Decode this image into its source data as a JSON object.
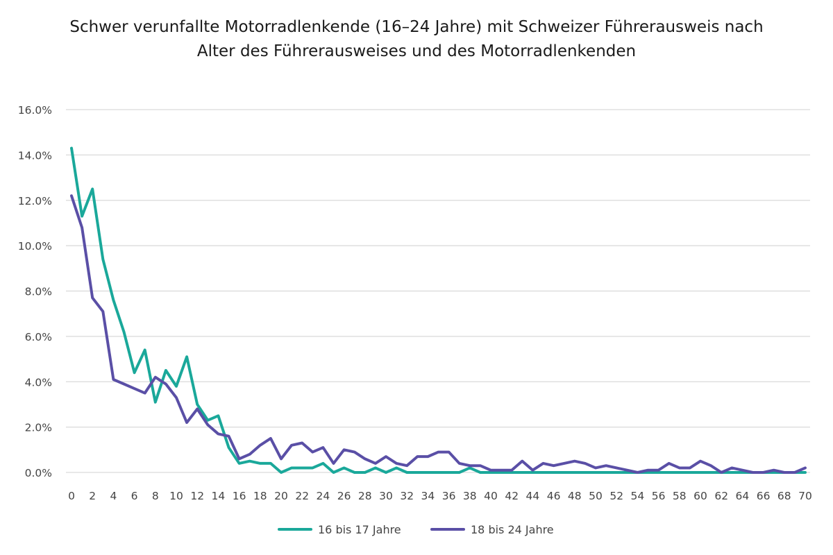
{
  "chart_data": {
    "type": "line",
    "title": "Schwer verunfallte Motorradlenkende (16–24 Jahre) mit Schweizer Führerausweis nach Alter des Führerausweises und des Motorradlenkenden",
    "xlabel": "",
    "ylabel": "",
    "x": [
      0,
      1,
      2,
      3,
      4,
      5,
      6,
      7,
      8,
      9,
      10,
      11,
      12,
      13,
      14,
      15,
      16,
      17,
      18,
      19,
      20,
      21,
      22,
      23,
      24,
      25,
      26,
      27,
      28,
      29,
      30,
      31,
      32,
      33,
      34,
      35,
      36,
      37,
      38,
      39,
      40,
      41,
      42,
      43,
      44,
      45,
      46,
      47,
      48,
      49,
      50,
      51,
      52,
      53,
      54,
      55,
      56,
      57,
      58,
      59,
      60,
      61,
      62,
      63,
      64,
      65,
      66,
      67,
      68,
      69,
      70
    ],
    "xlim": [
      0,
      70
    ],
    "ylim": [
      0,
      16
    ],
    "y_ticks": [
      0,
      2,
      4,
      6,
      8,
      10,
      12,
      14,
      16
    ],
    "y_tick_labels": [
      "0.0%",
      "2.0%",
      "4.0%",
      "6.0%",
      "8.0%",
      "10.0%",
      "12.0%",
      "14.0%",
      "16.0%"
    ],
    "x_tick_labels": [
      "0",
      "2",
      "4",
      "6",
      "8",
      "10",
      "12",
      "14",
      "16",
      "18",
      "20",
      "22",
      "24",
      "26",
      "28",
      "30",
      "32",
      "34",
      "36",
      "38",
      "40",
      "42",
      "44",
      "46",
      "48",
      "50",
      "52",
      "54",
      "56",
      "58",
      "60",
      "62",
      "64",
      "66",
      "68",
      "70"
    ],
    "x_tick_values": [
      0,
      2,
      4,
      6,
      8,
      10,
      12,
      14,
      16,
      18,
      20,
      22,
      24,
      26,
      28,
      30,
      32,
      34,
      36,
      38,
      40,
      42,
      44,
      46,
      48,
      50,
      52,
      54,
      56,
      58,
      60,
      62,
      64,
      66,
      68,
      70
    ],
    "grid": true,
    "legend_position": "bottom",
    "series": [
      {
        "name": "16 bis 17 Jahre",
        "color": "#1aa89a",
        "values": [
          14.3,
          11.3,
          12.5,
          9.4,
          7.6,
          6.2,
          4.4,
          5.4,
          3.1,
          4.5,
          3.8,
          5.1,
          3.0,
          2.3,
          2.5,
          1.1,
          0.4,
          0.5,
          0.4,
          0.4,
          0.0,
          0.2,
          0.2,
          0.2,
          0.4,
          0.0,
          0.2,
          0.0,
          0.0,
          0.2,
          0.0,
          0.2,
          0.0,
          0.0,
          0.0,
          0.0,
          0.0,
          0.0,
          0.2,
          0.0,
          0.0,
          0.0,
          0.0,
          0.0,
          0.0,
          0.0,
          0.0,
          0.0,
          0.0,
          0.0,
          0.0,
          0.0,
          0.0,
          0.0,
          0.0,
          0.0,
          0.0,
          0.0,
          0.0,
          0.0,
          0.0,
          0.0,
          0.0,
          0.0,
          0.0,
          0.0,
          0.0,
          0.0,
          0.0,
          0.0,
          0.0
        ]
      },
      {
        "name": "18 bis 24 Jahre",
        "color": "#5a4fa6",
        "values": [
          12.2,
          10.8,
          7.7,
          7.1,
          4.1,
          3.9,
          3.7,
          3.5,
          4.2,
          3.9,
          3.3,
          2.2,
          2.8,
          2.1,
          1.7,
          1.6,
          0.6,
          0.8,
          1.2,
          1.5,
          0.6,
          1.2,
          1.3,
          0.9,
          1.1,
          0.4,
          1.0,
          0.9,
          0.6,
          0.4,
          0.7,
          0.4,
          0.3,
          0.7,
          0.7,
          0.9,
          0.9,
          0.4,
          0.3,
          0.3,
          0.1,
          0.1,
          0.1,
          0.5,
          0.1,
          0.4,
          0.3,
          0.4,
          0.5,
          0.4,
          0.2,
          0.3,
          0.2,
          0.1,
          0.0,
          0.1,
          0.1,
          0.4,
          0.2,
          0.2,
          0.5,
          0.3,
          0.0,
          0.2,
          0.1,
          0.0,
          0.0,
          0.1,
          0.0,
          0.0,
          0.2
        ]
      }
    ]
  }
}
